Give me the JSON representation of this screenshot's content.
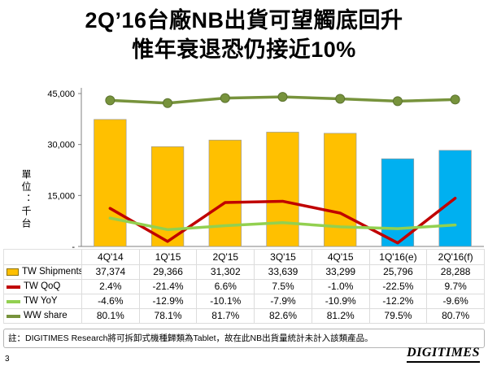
{
  "title": {
    "line1": "2Q’16台廠NB出貨可望觸底回升",
    "line2": "惟年衰退恐仍接近10%"
  },
  "chart": {
    "unit_label": "單位：千台",
    "y_ticks": [
      "45,000",
      "30,000",
      "15,000",
      "-"
    ]
  },
  "chart_data": {
    "type": "combo-bar-line",
    "categories": [
      "4Q'14",
      "1Q'15",
      "2Q'15",
      "3Q'15",
      "4Q'15",
      "1Q'16(e)",
      "2Q'16(f)"
    ],
    "bar_series": {
      "name": "TW Shipments",
      "values": [
        37374,
        29366,
        31302,
        33639,
        33299,
        25796,
        28288
      ],
      "colors": [
        "#FFC000",
        "#FFC000",
        "#FFC000",
        "#FFC000",
        "#FFC000",
        "#00B0F0",
        "#00B0F0"
      ]
    },
    "line_series": [
      {
        "name": "TW QoQ",
        "values": [
          2.4,
          -21.4,
          6.6,
          7.5,
          -1.0,
          -22.5,
          9.7
        ],
        "color": "#C00000",
        "markers": false
      },
      {
        "name": "TW YoY",
        "values": [
          -4.6,
          -12.9,
          -10.1,
          -7.9,
          -10.9,
          -12.2,
          -9.6
        ],
        "color": "#92D050",
        "markers": false
      },
      {
        "name": "WW share",
        "values": [
          80.1,
          78.1,
          81.7,
          82.6,
          81.2,
          79.5,
          80.7
        ],
        "color": "#77933C",
        "markers": true
      }
    ],
    "y_primary": {
      "min": 0,
      "max": 45000
    },
    "y_secondary": {
      "min": -25,
      "max": 85
    },
    "ylabel": "單位：千台",
    "legend_position": "table-left-column",
    "grid": false
  },
  "table": {
    "rows": [
      {
        "label": "TW Shipments",
        "swatch": "bar-yellow",
        "values": [
          "37,374",
          "29,366",
          "31,302",
          "33,639",
          "33,299",
          "25,796",
          "28,288"
        ]
      },
      {
        "label": "TW QoQ",
        "swatch": "line-red",
        "values": [
          "2.4%",
          "-21.4%",
          "6.6%",
          "7.5%",
          "-1.0%",
          "-22.5%",
          "9.7%"
        ]
      },
      {
        "label": "TW YoY",
        "swatch": "line-green",
        "values": [
          "-4.6%",
          "-12.9%",
          "-10.1%",
          "-7.9%",
          "-10.9%",
          "-12.2%",
          "-9.6%"
        ]
      },
      {
        "label": "WW share",
        "swatch": "line-olive",
        "values": [
          "80.1%",
          "78.1%",
          "81.7%",
          "82.6%",
          "81.2%",
          "79.5%",
          "80.7%"
        ]
      }
    ]
  },
  "footnote": "註：DIGITIMES Research將可拆卸式機種歸類為Tablet，故在此NB出貨量統計未計入該類產品。",
  "page_number": "3",
  "logo": "DIGITIMES"
}
